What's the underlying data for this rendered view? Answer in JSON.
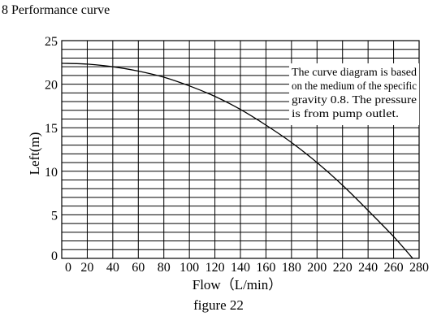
{
  "page": {
    "heading": "8 Performance curve",
    "caption": "figure 22"
  },
  "chart_data": {
    "type": "line",
    "title": "",
    "xlabel": "Flow（L/min）",
    "ylabel": "Left(m)",
    "xlim": [
      0,
      280
    ],
    "ylim": [
      0,
      25
    ],
    "xticks": [
      0,
      20,
      40,
      60,
      80,
      100,
      120,
      140,
      160,
      180,
      200,
      220,
      240,
      260,
      280
    ],
    "xtick_labels": [
      "0",
      "20",
      "40",
      "60",
      "80",
      "100",
      "120",
      "140",
      "160",
      "180",
      "200",
      "220",
      "240",
      "260",
      "280"
    ],
    "yticks": [
      0,
      5,
      10,
      15,
      20,
      25
    ],
    "ytick_labels": [
      "0",
      "5",
      "10",
      "15",
      "20",
      "25"
    ],
    "grid": true,
    "legend": "none",
    "annotation": [
      "The curve diagram is based",
      "on the medium of the specific",
      "gravity 0.8. The pressure",
      "is from pump outlet."
    ],
    "series": [
      {
        "x": [
          0,
          20,
          40,
          60,
          80,
          100,
          120,
          140,
          160,
          180,
          200,
          220,
          240,
          260,
          275
        ],
        "y": [
          22.4,
          22.3,
          22.0,
          21.5,
          20.8,
          19.8,
          18.6,
          17.1,
          15.3,
          13.3,
          11.0,
          8.4,
          5.5,
          2.5,
          0
        ]
      }
    ]
  }
}
